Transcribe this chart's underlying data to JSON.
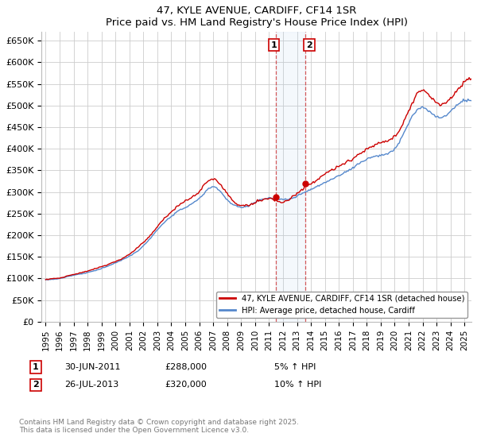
{
  "title": "47, KYLE AVENUE, CARDIFF, CF14 1SR",
  "subtitle": "Price paid vs. HM Land Registry's House Price Index (HPI)",
  "ylabel_ticks": [
    "£0",
    "£50K",
    "£100K",
    "£150K",
    "£200K",
    "£250K",
    "£300K",
    "£350K",
    "£400K",
    "£450K",
    "£500K",
    "£550K",
    "£600K",
    "£650K"
  ],
  "ytick_values": [
    0,
    50000,
    100000,
    150000,
    200000,
    250000,
    300000,
    350000,
    400000,
    450000,
    500000,
    550000,
    600000,
    650000
  ],
  "xlim_years": [
    1994.7,
    2025.5
  ],
  "ylim": [
    0,
    670000
  ],
  "hpi_color": "#5588cc",
  "price_color": "#cc0000",
  "marker1_year": 2011.5,
  "marker2_year": 2013.58,
  "shaded_xmin": 2011.5,
  "shaded_xmax": 2013.58,
  "legend_price_label": "47, KYLE AVENUE, CARDIFF, CF14 1SR (detached house)",
  "legend_hpi_label": "HPI: Average price, detached house, Cardiff",
  "annotation1_date": "30-JUN-2011",
  "annotation1_price": "£288,000",
  "annotation1_hpi": "5% ↑ HPI",
  "annotation2_date": "26-JUL-2013",
  "annotation2_price": "£320,000",
  "annotation2_hpi": "10% ↑ HPI",
  "footer": "Contains HM Land Registry data © Crown copyright and database right 2025.\nThis data is licensed under the Open Government Licence v3.0.",
  "grid_color": "#cccccc",
  "background_color": "#ffffff"
}
